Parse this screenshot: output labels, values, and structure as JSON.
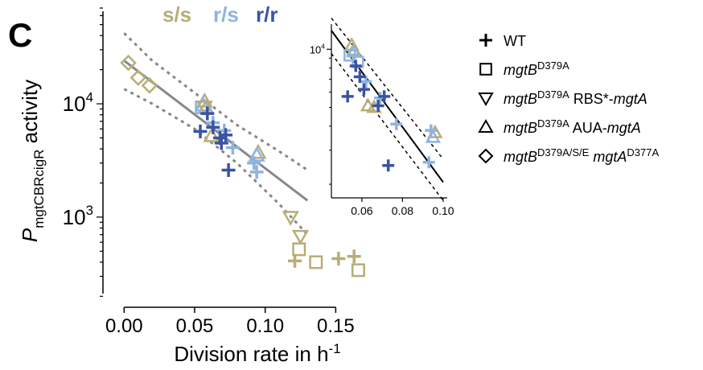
{
  "panel_label": "C",
  "colors": {
    "s_s": "#b8ad76",
    "r_s": "#8eb3e0",
    "r_r": "#3a53a4",
    "fit_main": "#888888",
    "ci_main": "#888888",
    "fit_inset": "#000000"
  },
  "genotype_labels": [
    {
      "text": "s/s",
      "color_key": "s_s"
    },
    {
      "text": "r/s",
      "color_key": "r_s"
    },
    {
      "text": "r/r",
      "color_key": "r_r"
    }
  ],
  "legend": [
    {
      "marker": "plus",
      "parts": [
        {
          "t": "WT",
          "italic": false,
          "sup": false
        }
      ]
    },
    {
      "marker": "square",
      "parts": [
        {
          "t": "mgtB",
          "italic": true,
          "sup": false
        },
        {
          "t": "D379A",
          "italic": false,
          "sup": true
        }
      ]
    },
    {
      "marker": "triangle-down",
      "parts": [
        {
          "t": "mgtB",
          "italic": true,
          "sup": false
        },
        {
          "t": "D379A",
          "italic": false,
          "sup": true
        },
        {
          "t": " RBS*-",
          "italic": false,
          "sup": false
        },
        {
          "t": "mgtA",
          "italic": true,
          "sup": false
        }
      ]
    },
    {
      "marker": "triangle-up",
      "parts": [
        {
          "t": "mgtB",
          "italic": true,
          "sup": false
        },
        {
          "t": "D379A",
          "italic": false,
          "sup": true
        },
        {
          "t": " AUA-",
          "italic": false,
          "sup": false
        },
        {
          "t": "mgtA",
          "italic": true,
          "sup": false
        }
      ]
    },
    {
      "marker": "diamond",
      "parts": [
        {
          "t": "mgtB",
          "italic": true,
          "sup": false
        },
        {
          "t": "D379A/S/E",
          "italic": false,
          "sup": true
        },
        {
          "t": " ",
          "italic": false,
          "sup": false
        },
        {
          "t": "mgtA",
          "italic": true,
          "sup": false
        },
        {
          "t": "D377A",
          "italic": false,
          "sup": true
        }
      ]
    }
  ],
  "chart_data": [
    {
      "type": "scatter",
      "xlabel": {
        "main": "Division rate in h",
        "sup": "-1"
      },
      "ylabel": {
        "italic": "P",
        "sub": "mgtCBRcigR",
        "rest": " activity"
      },
      "xlim": [
        -0.015,
        0.18
      ],
      "ylim": [
        160,
        70000
      ],
      "yscale": "log",
      "xticks": [
        0.0,
        0.05,
        0.1,
        0.15
      ],
      "xtick_labels": [
        "0.00",
        "0.05",
        "0.10",
        "0.15"
      ],
      "yticks": [
        1000,
        10000
      ],
      "ytick_labels": [
        {
          "base": "10",
          "exp": "3"
        },
        {
          "base": "10",
          "exp": "4"
        }
      ],
      "fit": {
        "x": [
          0.0,
          0.13
        ],
        "y": [
          24000,
          1400
        ]
      },
      "ci_upper": {
        "x": [
          0.0,
          0.02,
          0.05,
          0.08,
          0.11,
          0.13
        ],
        "y": [
          42000,
          24000,
          12500,
          6500,
          3800,
          2600
        ]
      },
      "ci_lower": {
        "x": [
          0.0,
          0.02,
          0.05,
          0.08,
          0.11,
          0.13
        ],
        "y": [
          13500,
          10000,
          6000,
          3000,
          1300,
          700
        ]
      },
      "series": [
        {
          "marker": "diamond",
          "color_key": "s_s",
          "points": [
            [
              0.003,
              23000
            ],
            [
              0.01,
              17000
            ],
            [
              0.018,
              14500
            ]
          ]
        },
        {
          "marker": "triangle-up",
          "color_key": "s_s",
          "points": [
            [
              0.057,
              10500
            ],
            [
              0.058,
              9200
            ],
            [
              0.062,
              5200
            ],
            [
              0.095,
              3700
            ]
          ]
        },
        {
          "marker": "triangle-up",
          "color_key": "r_s",
          "points": [
            [
              0.056,
              9700
            ],
            [
              0.094,
              3500
            ]
          ]
        },
        {
          "marker": "square",
          "color_key": "r_s",
          "points": [
            [
              0.055,
              9300
            ]
          ]
        },
        {
          "marker": "square",
          "color_key": "s_s",
          "points": [
            [
              0.124,
              520
            ],
            [
              0.136,
              400
            ],
            [
              0.166,
              340
            ]
          ]
        },
        {
          "marker": "triangle-down",
          "color_key": "s_s",
          "points": [
            [
              0.057,
              9400
            ],
            [
              0.118,
              1000
            ],
            [
              0.125,
              680
            ]
          ]
        },
        {
          "marker": "plus",
          "color_key": "s_s",
          "points": [
            [
              0.121,
              410
            ],
            [
              0.152,
              430
            ],
            [
              0.163,
              450
            ]
          ]
        },
        {
          "marker": "plus",
          "color_key": "r_s",
          "points": [
            [
              0.063,
              6800
            ],
            [
              0.071,
              5800
            ],
            [
              0.077,
              4100
            ],
            [
              0.092,
              3000
            ],
            [
              0.094,
              2500
            ]
          ]
        },
        {
          "marker": "plus",
          "color_key": "r_r",
          "points": [
            [
              0.054,
              5700
            ],
            [
              0.059,
              8200
            ],
            [
              0.063,
              6200
            ],
            [
              0.068,
              5000
            ],
            [
              0.069,
              4500
            ],
            [
              0.072,
              5300
            ],
            [
              0.074,
              2600
            ]
          ]
        }
      ]
    },
    {
      "type": "scatter",
      "inset": true,
      "xlim": [
        0.045,
        0.102
      ],
      "ylim": [
        1700,
        13500
      ],
      "yscale": "log",
      "xticks": [
        0.06,
        0.08,
        0.1
      ],
      "xtick_labels": [
        "0.06",
        "0.08",
        "0.10"
      ],
      "yticks": [
        10000
      ],
      "ytick_labels": [
        {
          "base": "10",
          "exp": "4"
        }
      ],
      "fit": {
        "x": [
          0.045,
          0.1
        ],
        "y": [
          12500,
          2050
        ]
      },
      "ci_upper": {
        "x": [
          0.045,
          0.1
        ],
        "y": [
          14500,
          2700
        ]
      },
      "ci_lower": {
        "x": [
          0.045,
          0.1
        ],
        "y": [
          9500,
          1650
        ]
      },
      "series": [
        {
          "marker": "triangle-up",
          "color_key": "s_s",
          "points": [
            [
              0.055,
              10500
            ],
            [
              0.056,
              9900
            ],
            [
              0.063,
              5100
            ],
            [
              0.066,
              5000
            ],
            [
              0.096,
              3700
            ]
          ]
        },
        {
          "marker": "triangle-up",
          "color_key": "r_s",
          "points": [
            [
              0.056,
              9700
            ],
            [
              0.095,
              3500
            ]
          ]
        },
        {
          "marker": "square",
          "color_key": "r_s",
          "points": [
            [
              0.054,
              9300
            ],
            [
              0.058,
              8600
            ]
          ]
        },
        {
          "marker": "plus",
          "color_key": "r_s",
          "points": [
            [
              0.062,
              6800
            ],
            [
              0.069,
              5600
            ],
            [
              0.077,
              4100
            ],
            [
              0.094,
              3800
            ],
            [
              0.093,
              2600
            ]
          ]
        },
        {
          "marker": "plus",
          "color_key": "r_r",
          "points": [
            [
              0.053,
              5700
            ],
            [
              0.057,
              8200
            ],
            [
              0.059,
              7200
            ],
            [
              0.061,
              6200
            ],
            [
              0.068,
              5100
            ],
            [
              0.071,
              5700
            ],
            [
              0.073,
              2500
            ]
          ]
        }
      ]
    }
  ]
}
